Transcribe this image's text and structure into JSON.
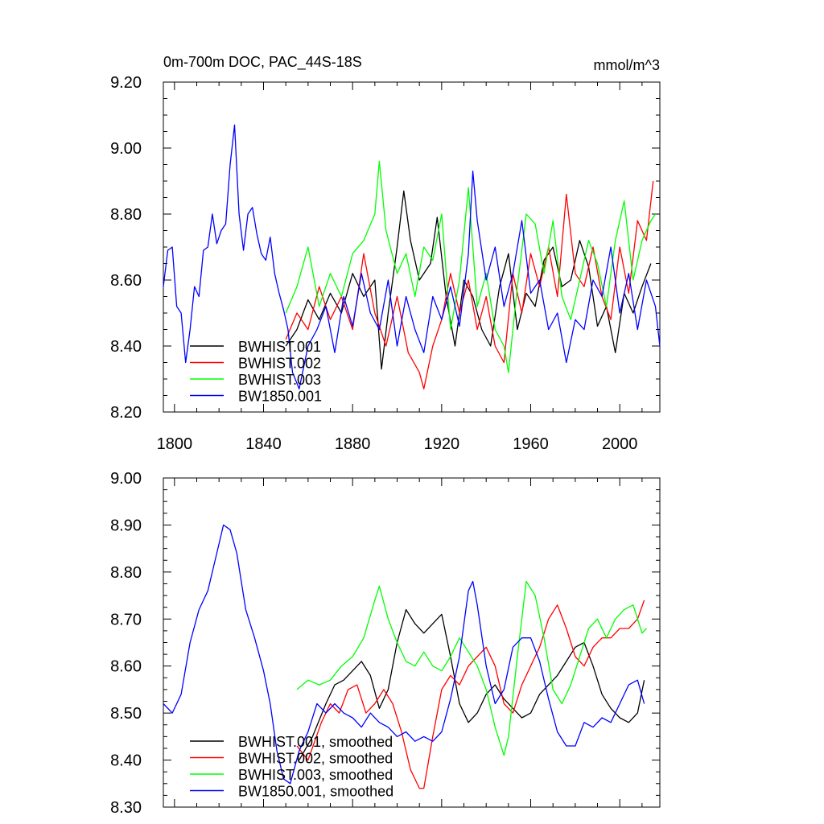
{
  "chart_data": [
    {
      "type": "line",
      "title": "0m-700m DOC, PAC_44S-18S",
      "units": "mmol/m^3",
      "xlim": [
        1795,
        2018
      ],
      "ylim": [
        8.2,
        9.2
      ],
      "xticks": [
        1800,
        1840,
        1880,
        1920,
        1960,
        2000
      ],
      "yticks": [
        "8.20",
        "8.40",
        "8.60",
        "8.80",
        "9.00",
        "9.20"
      ],
      "legend_position": "bottom-left",
      "series": [
        {
          "name": "BWHIST.001",
          "color": "#000000",
          "x": [
            1850,
            1855,
            1860,
            1865,
            1870,
            1875,
            1880,
            1885,
            1890,
            1893,
            1896,
            1900,
            1903,
            1906,
            1910,
            1915,
            1918,
            1922,
            1926,
            1930,
            1934,
            1938,
            1942,
            1946,
            1950,
            1954,
            1958,
            1962,
            1966,
            1970,
            1974,
            1978,
            1982,
            1986,
            1990,
            1994,
            1998,
            2002,
            2006,
            2010,
            2014
          ],
          "y": [
            8.4,
            8.45,
            8.54,
            8.48,
            8.56,
            8.5,
            8.62,
            8.55,
            8.6,
            8.33,
            8.5,
            8.7,
            8.87,
            8.72,
            8.6,
            8.65,
            8.79,
            8.55,
            8.4,
            8.6,
            8.55,
            8.45,
            8.4,
            8.58,
            8.68,
            8.45,
            8.56,
            8.52,
            8.66,
            8.7,
            8.58,
            8.6,
            8.72,
            8.64,
            8.46,
            8.52,
            8.38,
            8.56,
            8.5,
            8.58,
            8.65
          ]
        },
        {
          "name": "BWHIST.002",
          "color": "#ff0000",
          "x": [
            1850,
            1855,
            1860,
            1865,
            1870,
            1875,
            1880,
            1885,
            1890,
            1895,
            1900,
            1905,
            1910,
            1912,
            1916,
            1920,
            1924,
            1928,
            1932,
            1936,
            1940,
            1944,
            1948,
            1952,
            1956,
            1960,
            1964,
            1968,
            1972,
            1976,
            1980,
            1984,
            1988,
            1992,
            1996,
            2000,
            2004,
            2008,
            2012,
            2015
          ],
          "y": [
            8.42,
            8.5,
            8.45,
            8.58,
            8.48,
            8.55,
            8.45,
            8.68,
            8.5,
            8.4,
            8.55,
            8.38,
            8.32,
            8.27,
            8.4,
            8.48,
            8.62,
            8.5,
            8.6,
            8.45,
            8.55,
            8.4,
            8.35,
            8.62,
            8.5,
            8.68,
            8.58,
            8.7,
            8.55,
            8.86,
            8.62,
            8.58,
            8.7,
            8.55,
            8.48,
            8.7,
            8.56,
            8.78,
            8.72,
            8.9
          ]
        },
        {
          "name": "BWHIST.003",
          "color": "#00ff00",
          "x": [
            1850,
            1855,
            1860,
            1865,
            1870,
            1875,
            1880,
            1885,
            1890,
            1892,
            1895,
            1900,
            1904,
            1908,
            1912,
            1916,
            1920,
            1924,
            1928,
            1932,
            1936,
            1940,
            1944,
            1948,
            1950,
            1954,
            1958,
            1962,
            1966,
            1970,
            1974,
            1978,
            1982,
            1986,
            1990,
            1994,
            1998,
            2002,
            2006,
            2010,
            2014,
            2016
          ],
          "y": [
            8.5,
            8.58,
            8.7,
            8.52,
            8.62,
            8.55,
            8.68,
            8.72,
            8.8,
            8.96,
            8.75,
            8.62,
            8.68,
            8.55,
            8.7,
            8.66,
            8.8,
            8.45,
            8.6,
            8.88,
            8.52,
            8.62,
            8.45,
            8.4,
            8.32,
            8.58,
            8.8,
            8.77,
            8.62,
            8.78,
            8.55,
            8.48,
            8.6,
            8.72,
            8.65,
            8.52,
            8.72,
            8.84,
            8.6,
            8.72,
            8.78,
            8.8
          ]
        },
        {
          "name": "BW1850.001",
          "color": "#0000ff",
          "x": [
            1795,
            1797,
            1799,
            1801,
            1803,
            1805,
            1807,
            1809,
            1811,
            1813,
            1815,
            1817,
            1819,
            1821,
            1823,
            1825,
            1827,
            1829,
            1831,
            1833,
            1835,
            1837,
            1839,
            1841,
            1843,
            1845,
            1847,
            1849,
            1851,
            1853,
            1856,
            1860,
            1864,
            1868,
            1872,
            1876,
            1880,
            1884,
            1888,
            1892,
            1896,
            1900,
            1904,
            1908,
            1912,
            1916,
            1920,
            1924,
            1928,
            1932,
            1934,
            1936,
            1940,
            1944,
            1948,
            1952,
            1956,
            1960,
            1964,
            1968,
            1972,
            1976,
            1980,
            1984,
            1988,
            1992,
            1996,
            2000,
            2004,
            2008,
            2012,
            2016,
            2018
          ],
          "y": [
            8.58,
            8.69,
            8.7,
            8.52,
            8.5,
            8.35,
            8.45,
            8.58,
            8.55,
            8.69,
            8.7,
            8.8,
            8.71,
            8.75,
            8.77,
            8.95,
            9.07,
            8.8,
            8.69,
            8.8,
            8.82,
            8.74,
            8.68,
            8.66,
            8.73,
            8.62,
            8.56,
            8.51,
            8.45,
            8.32,
            8.27,
            8.4,
            8.45,
            8.52,
            8.38,
            8.55,
            8.46,
            8.62,
            8.5,
            8.45,
            8.6,
            8.4,
            8.55,
            8.45,
            8.38,
            8.55,
            8.48,
            8.58,
            8.46,
            8.68,
            8.93,
            8.78,
            8.6,
            8.7,
            8.52,
            8.62,
            8.78,
            8.56,
            8.6,
            8.45,
            8.5,
            8.35,
            8.48,
            8.45,
            8.6,
            8.55,
            8.7,
            8.5,
            8.62,
            8.45,
            8.6,
            8.52,
            8.4
          ]
        }
      ]
    },
    {
      "type": "line",
      "xlim": [
        1795,
        2018
      ],
      "ylim": [
        8.3,
        9.0
      ],
      "yticks": [
        "8.30",
        "8.40",
        "8.50",
        "8.60",
        "8.70",
        "8.80",
        "8.90",
        "9.00"
      ],
      "legend_position": "bottom-left",
      "series": [
        {
          "name": "BWHIST.001, smoothed",
          "color": "#000000",
          "x": [
            1856,
            1862,
            1868,
            1872,
            1876,
            1880,
            1884,
            1888,
            1892,
            1896,
            1900,
            1904,
            1908,
            1912,
            1916,
            1920,
            1924,
            1928,
            1932,
            1936,
            1940,
            1944,
            1948,
            1952,
            1956,
            1960,
            1964,
            1968,
            1972,
            1976,
            1980,
            1984,
            1988,
            1992,
            1996,
            2000,
            2004,
            2008,
            2011
          ],
          "y": [
            8.4,
            8.45,
            8.52,
            8.56,
            8.57,
            8.59,
            8.61,
            8.58,
            8.51,
            8.55,
            8.65,
            8.72,
            8.69,
            8.67,
            8.69,
            8.71,
            8.62,
            8.52,
            8.48,
            8.5,
            8.54,
            8.56,
            8.53,
            8.51,
            8.49,
            8.5,
            8.54,
            8.56,
            8.58,
            8.61,
            8.64,
            8.65,
            8.6,
            8.54,
            8.51,
            8.49,
            8.48,
            8.5,
            8.57
          ]
        },
        {
          "name": "BWHIST.002, smoothed",
          "color": "#ff0000",
          "x": [
            1855,
            1860,
            1866,
            1870,
            1874,
            1878,
            1882,
            1886,
            1890,
            1894,
            1898,
            1902,
            1906,
            1910,
            1912,
            1916,
            1920,
            1924,
            1928,
            1932,
            1936,
            1940,
            1944,
            1948,
            1952,
            1956,
            1960,
            1964,
            1968,
            1972,
            1976,
            1980,
            1984,
            1988,
            1992,
            1996,
            2000,
            2004,
            2008,
            2011
          ],
          "y": [
            8.43,
            8.4,
            8.48,
            8.52,
            8.5,
            8.55,
            8.56,
            8.5,
            8.52,
            8.55,
            8.52,
            8.46,
            8.38,
            8.34,
            8.34,
            8.45,
            8.55,
            8.58,
            8.56,
            8.6,
            8.62,
            8.64,
            8.6,
            8.52,
            8.5,
            8.56,
            8.6,
            8.64,
            8.7,
            8.73,
            8.68,
            8.62,
            8.6,
            8.64,
            8.66,
            8.66,
            8.68,
            8.68,
            8.7,
            8.74
          ]
        },
        {
          "name": "BWHIST.003, smoothed",
          "color": "#00ff00",
          "x": [
            1855,
            1860,
            1865,
            1870,
            1875,
            1880,
            1885,
            1890,
            1892,
            1896,
            1900,
            1904,
            1908,
            1912,
            1916,
            1920,
            1924,
            1928,
            1932,
            1936,
            1940,
            1944,
            1948,
            1950,
            1954,
            1958,
            1962,
            1966,
            1970,
            1974,
            1978,
            1982,
            1986,
            1990,
            1994,
            1998,
            2002,
            2006,
            2010,
            2012
          ],
          "y": [
            8.55,
            8.57,
            8.56,
            8.57,
            8.6,
            8.62,
            8.66,
            8.74,
            8.77,
            8.7,
            8.65,
            8.61,
            8.6,
            8.63,
            8.6,
            8.59,
            8.62,
            8.66,
            8.63,
            8.6,
            8.55,
            8.47,
            8.41,
            8.45,
            8.62,
            8.78,
            8.75,
            8.66,
            8.55,
            8.52,
            8.56,
            8.62,
            8.68,
            8.7,
            8.66,
            8.7,
            8.72,
            8.73,
            8.67,
            8.68
          ]
        },
        {
          "name": "BW1850.001, smoothed",
          "color": "#0000ff",
          "x": [
            1795,
            1799,
            1803,
            1807,
            1811,
            1815,
            1819,
            1822,
            1825,
            1828,
            1832,
            1836,
            1840,
            1843,
            1846,
            1849,
            1852,
            1856,
            1860,
            1864,
            1868,
            1872,
            1876,
            1880,
            1884,
            1888,
            1892,
            1896,
            1900,
            1904,
            1908,
            1912,
            1916,
            1920,
            1924,
            1928,
            1932,
            1934,
            1936,
            1940,
            1944,
            1948,
            1952,
            1956,
            1960,
            1964,
            1968,
            1972,
            1976,
            1980,
            1984,
            1988,
            1992,
            1996,
            2000,
            2004,
            2008,
            2011
          ],
          "y": [
            8.52,
            8.5,
            8.54,
            8.65,
            8.72,
            8.76,
            8.84,
            8.9,
            8.89,
            8.84,
            8.72,
            8.66,
            8.59,
            8.52,
            8.42,
            8.36,
            8.35,
            8.42,
            8.46,
            8.52,
            8.5,
            8.52,
            8.5,
            8.49,
            8.47,
            8.5,
            8.48,
            8.47,
            8.45,
            8.46,
            8.44,
            8.45,
            8.44,
            8.46,
            8.53,
            8.62,
            8.76,
            8.78,
            8.73,
            8.6,
            8.52,
            8.55,
            8.64,
            8.66,
            8.66,
            8.61,
            8.53,
            8.46,
            8.43,
            8.43,
            8.48,
            8.47,
            8.49,
            8.48,
            8.52,
            8.56,
            8.57,
            8.52
          ]
        }
      ]
    }
  ]
}
